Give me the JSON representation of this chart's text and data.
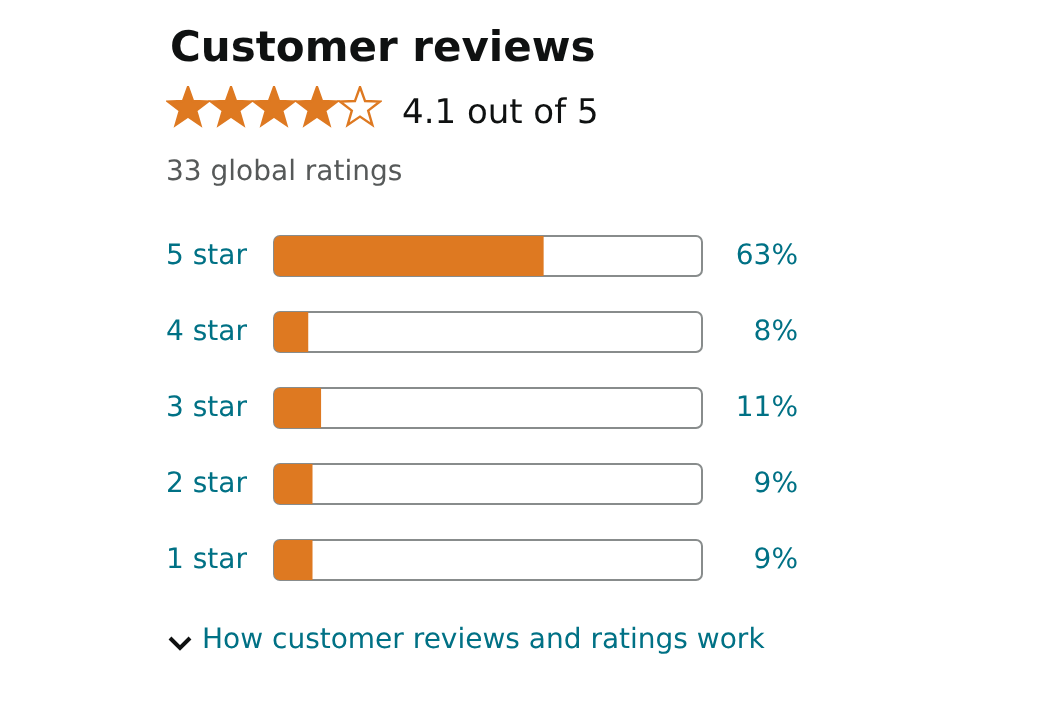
{
  "chart_data": {
    "type": "bar",
    "orientation": "horizontal",
    "title": "Customer reviews",
    "subtitle": "4.1 out of 5",
    "annotations": [
      "33 global ratings",
      "How customer reviews and ratings work"
    ],
    "categories": [
      "5 star",
      "4 star",
      "3 star",
      "2 star",
      "1 star"
    ],
    "values": [
      63,
      8,
      11,
      9,
      9
    ],
    "color": "#de7921",
    "value_labels": [
      "63%",
      "8%",
      "11%",
      "9%",
      "9%"
    ],
    "xlim": [
      0,
      100
    ],
    "tick_labels": "y"
  }
}
